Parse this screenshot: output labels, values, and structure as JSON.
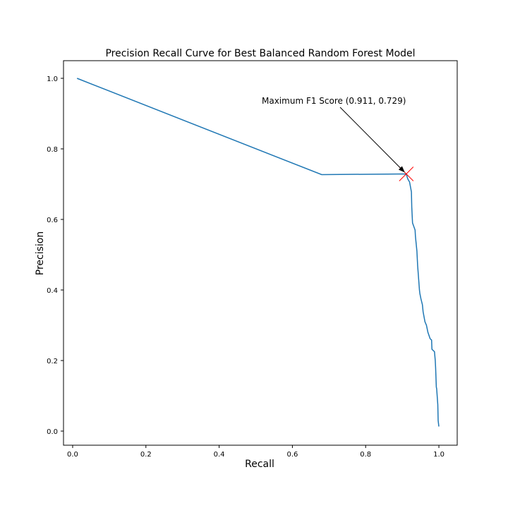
{
  "chart_data": {
    "type": "line",
    "title": "Precision Recall Curve for Best Balanced Random Forest Model",
    "xlabel": "Recall",
    "ylabel": "Precision",
    "xlim": [
      -0.025,
      1.05
    ],
    "ylim": [
      -0.04,
      1.05
    ],
    "xticks": [
      0.0,
      0.2,
      0.4,
      0.6,
      0.8,
      1.0
    ],
    "xtick_labels": [
      "0.0",
      "0.2",
      "0.4",
      "0.6",
      "0.8",
      "1.0"
    ],
    "yticks": [
      0.0,
      0.2,
      0.4,
      0.6,
      0.8,
      1.0
    ],
    "ytick_labels": [
      "0.0",
      "0.2",
      "0.4",
      "0.6",
      "0.8",
      "1.0"
    ],
    "grid": false,
    "series": [
      {
        "color": "#1f77b4",
        "x": [
          0.012,
          0.68,
          0.911,
          0.915,
          0.92,
          0.925,
          0.926,
          0.928,
          0.935,
          0.936,
          0.94,
          0.942,
          0.947,
          0.948,
          0.951,
          0.955,
          0.957,
          0.962,
          0.966,
          0.97,
          0.975,
          0.976,
          0.98,
          0.981,
          0.988,
          0.99,
          0.991,
          0.993,
          0.994,
          0.997,
          0.998,
          1.0
        ],
        "y": [
          1.0,
          0.727,
          0.729,
          0.715,
          0.706,
          0.678,
          0.635,
          0.59,
          0.57,
          0.552,
          0.51,
          0.47,
          0.4,
          0.39,
          0.375,
          0.358,
          0.338,
          0.31,
          0.3,
          0.28,
          0.265,
          0.262,
          0.258,
          0.232,
          0.225,
          0.2,
          0.18,
          0.125,
          0.12,
          0.075,
          0.03,
          0.013
        ]
      }
    ],
    "marker": {
      "x": 0.911,
      "y": 0.729,
      "symbol": "x",
      "color": "#ff0000"
    },
    "annotation": {
      "text": "Maximum F1 Score (0.911, 0.729)",
      "x": 0.911,
      "y": 0.729,
      "arrow": true
    }
  }
}
